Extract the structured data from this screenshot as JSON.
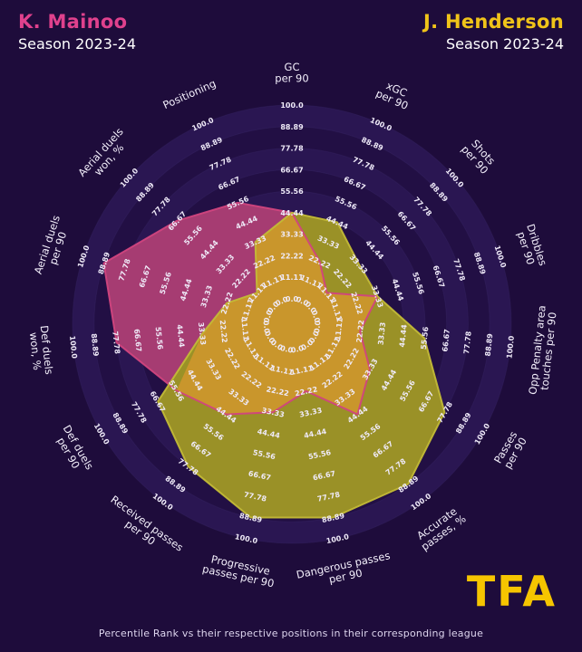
{
  "header": {
    "left": {
      "name": "K. Mainoo",
      "season": "Season 2023-24",
      "color": "#e0418d"
    },
    "right": {
      "name": "J. Henderson",
      "season": "Season 2023-24",
      "color": "#f0c419"
    }
  },
  "footer": {
    "caption": "Percentile Rank vs their respective positions in their corresponding league",
    "logo_text": "TFA"
  },
  "chart_data": {
    "type": "radar",
    "title": "K. Mainoo vs J. Henderson - Season 2023-24 percentile radar",
    "axis_range": [
      0,
      100
    ],
    "grid": "concentric-rings",
    "legend_position": "none",
    "rings": [
      0,
      11.11,
      22.22,
      33.33,
      44.44,
      55.56,
      66.67,
      77.78,
      88.89,
      100
    ],
    "ring_labels": [
      "0.0",
      "11.11",
      "22.22",
      "33.33",
      "44.44",
      "55.56",
      "66.67",
      "77.78",
      "88.89",
      "100.0"
    ],
    "categories": [
      [
        "GC",
        "per 90"
      ],
      [
        "xGC",
        "per 90"
      ],
      [
        "Shots",
        "per 90"
      ],
      [
        "Dribbles",
        "per 90"
      ],
      [
        "Opp Penalty area",
        "touches per 90"
      ],
      [
        "Passes",
        "per 90"
      ],
      [
        "Accurate",
        "passes, %"
      ],
      [
        "Dangerous passes",
        "per 90"
      ],
      [
        "Progressive",
        "passes per 90"
      ],
      [
        "Received passes",
        "per 90"
      ],
      [
        "Def duels",
        "per 90"
      ],
      [
        "Def duels",
        "won, %"
      ],
      [
        "Aerial duels",
        "per 90"
      ],
      [
        "Aerial duels",
        "won, %"
      ],
      [
        "Positioning"
      ]
    ],
    "series": [
      {
        "name": "K. Mainoo",
        "fill": "#a63c72",
        "stroke": "#d1447e",
        "values": [
          44.44,
          22.22,
          11.11,
          33.33,
          22.22,
          33.33,
          44.44,
          22.22,
          33.33,
          44.44,
          55.56,
          77.78,
          88.89,
          66.67,
          55.56
        ]
      },
      {
        "name": "J. Henderson",
        "fill": "#9a9127",
        "stroke": "#c3bb37",
        "values": [
          44.44,
          44.44,
          33.33,
          33.33,
          55.56,
          77.78,
          88.89,
          88.89,
          88.89,
          77.78,
          66.67,
          33.33,
          22.22,
          11.11,
          33.33
        ]
      }
    ],
    "overlap_fill": "#c9962c"
  },
  "palette": {
    "background": "#1e0c3b",
    "ring_light": "#2a1652",
    "ring_dark": "#220f44",
    "ring_line": "#3a2768",
    "tick_text": "#efeaf8",
    "axis_text": "#f3effb",
    "logo": "#f6c500"
  }
}
